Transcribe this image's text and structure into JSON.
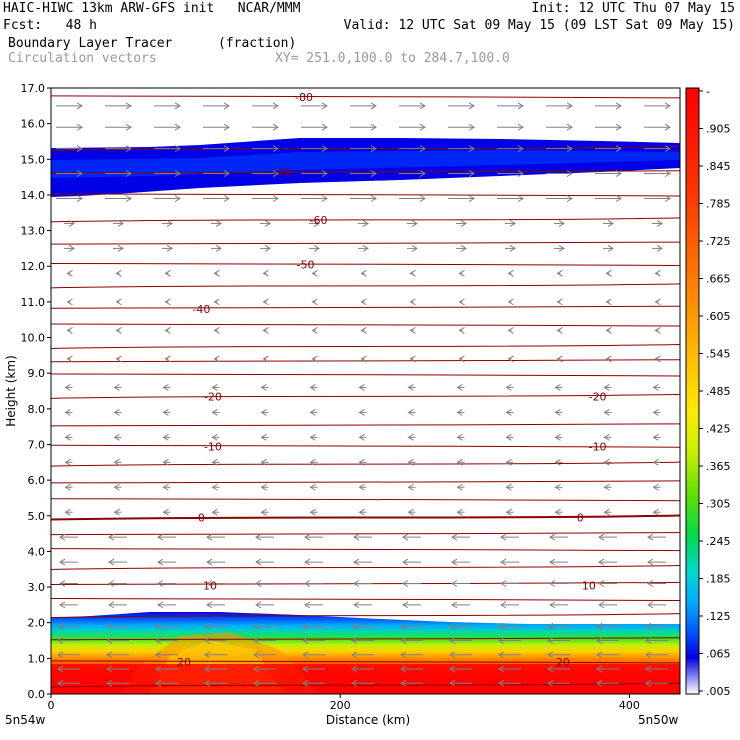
{
  "header": {
    "line1_left": "HAIC-HIWC 13km ARW-GFS init   NCAR/MMM",
    "line1_right": "Init: 12 UTC Thu 07 May 15",
    "line2_left": "Fcst:   48 h",
    "line2_right": "Valid: 12 UTC Sat 09 May 15 (09 LST Sat 09 May 15)",
    "field_name": "Boundary Layer Tracer",
    "field_unit": "(fraction)",
    "vector_label": "Circulation vectors",
    "xy_label": "XY= 251.0,100.0 to 284.7,100.0"
  },
  "colors": {
    "contour": "#8b0000",
    "vector": "#808080",
    "shading": [
      "#ffffff",
      "#0000e0",
      "#0050ff",
      "#0090ff",
      "#00c8ff",
      "#00e8c8",
      "#00d850",
      "#40e000",
      "#a0f000",
      "#e8f800",
      "#ffe000",
      "#ffb000",
      "#ff8000",
      "#ff4000",
      "#ff1000",
      "#ff0000"
    ]
  },
  "chart_data": {
    "type": "heatmap",
    "ylabel": "Height (km)",
    "xlabel": "Distance (km)",
    "ylim": [
      0,
      17
    ],
    "xlim": [
      0,
      435
    ],
    "yticks": [
      "0.0",
      "1.0",
      "2.0",
      "3.0",
      "4.0",
      "5.0",
      "6.0",
      "7.0",
      "8.0",
      "9.0",
      "10.0",
      "11.0",
      "12.0",
      "13.0",
      "14.0",
      "15.0",
      "16.0",
      "17.0"
    ],
    "xticks": [
      "0",
      "200",
      "400"
    ],
    "x_endpoints": [
      "5n54w",
      "5n50w"
    ],
    "colorbar_labels": [
      "-",
      ".905",
      ".845",
      ".785",
      ".725",
      ".665",
      ".605",
      ".545",
      ".485",
      ".425",
      ".365",
      ".305",
      ".245",
      ".185",
      ".125",
      ".065",
      ".005"
    ],
    "contour_labels": [
      {
        "text": "-80",
        "x": 175,
        "y": 16.75
      },
      {
        "text": "-70",
        "x": 160,
        "y": 14.65
      },
      {
        "text": "-60",
        "x": 185,
        "y": 13.3
      },
      {
        "text": "-50",
        "x": 176,
        "y": 12.05
      },
      {
        "text": "-40",
        "x": 104,
        "y": 10.8
      },
      {
        "text": "-20",
        "x": 112,
        "y": 8.35
      },
      {
        "text": "-20",
        "x": 378,
        "y": 8.35
      },
      {
        "text": "-10",
        "x": 112,
        "y": 6.95
      },
      {
        "text": "-10",
        "x": 378,
        "y": 6.95
      },
      {
        "text": "0",
        "x": 104,
        "y": 4.95
      },
      {
        "text": "0",
        "x": 366,
        "y": 4.95
      },
      {
        "text": "10",
        "x": 110,
        "y": 3.05
      },
      {
        "text": "10",
        "x": 372,
        "y": 3.05
      },
      {
        "text": "20",
        "x": 92,
        "y": 0.9
      },
      {
        "text": "20",
        "x": 354,
        "y": 0.9
      }
    ],
    "series": [
      {
        "name": "Boundary Layer Tracer",
        "values": []
      }
    ]
  }
}
